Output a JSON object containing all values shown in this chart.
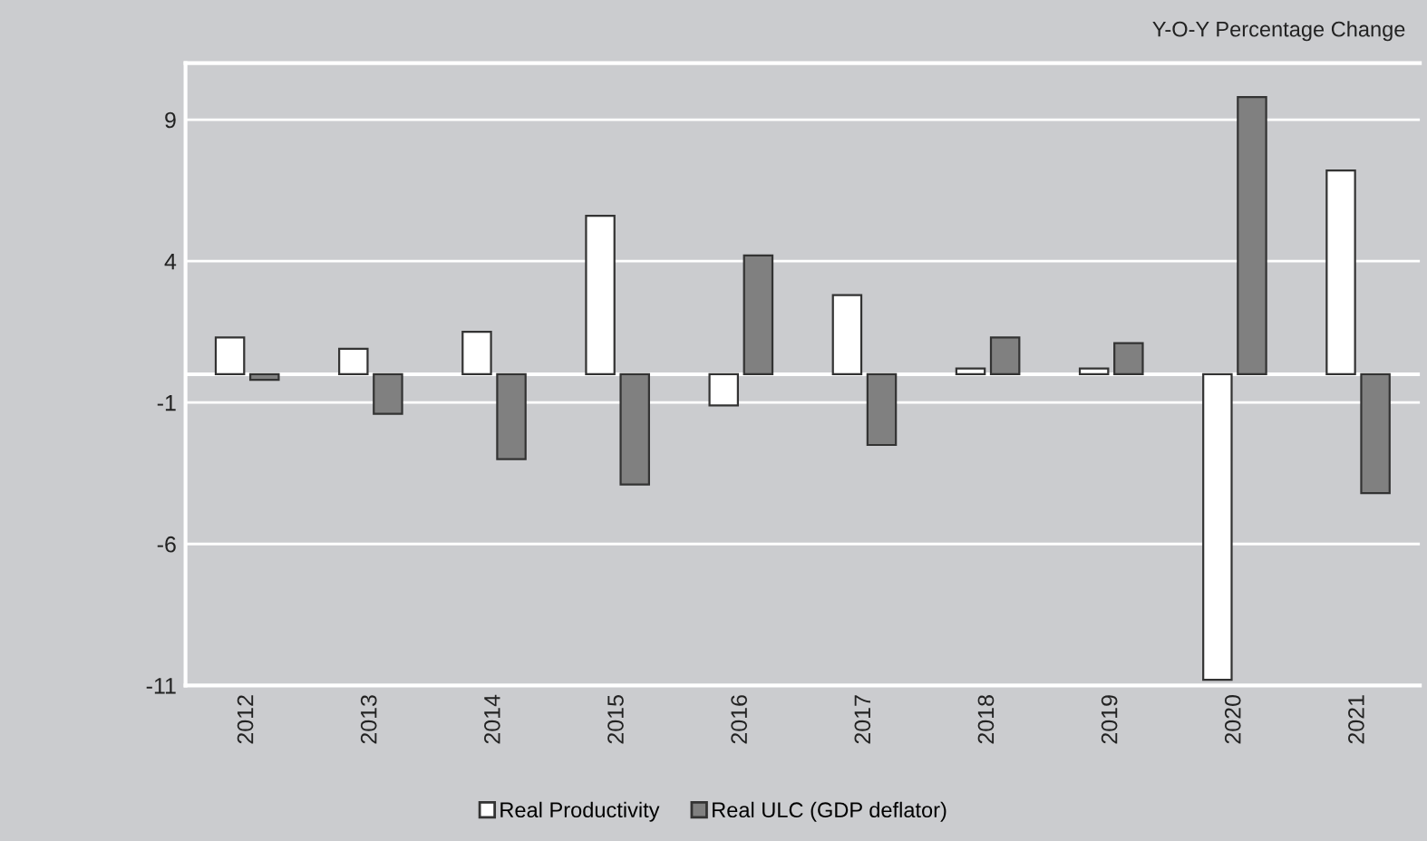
{
  "chart_data": {
    "type": "bar",
    "categories": [
      "2012",
      "2013",
      "2014",
      "2015",
      "2016",
      "2017",
      "2018",
      "2019",
      "2020",
      "2021"
    ],
    "series": [
      {
        "name": "Real Productivity",
        "color": "#ffffff",
        "values": [
          1.3,
          0.9,
          1.5,
          5.6,
          -1.1,
          2.8,
          0.2,
          0.2,
          -10.8,
          7.2
        ]
      },
      {
        "name": "Real ULC (GDP deflator)",
        "color": "#808080",
        "values": [
          -0.2,
          -1.4,
          -3.0,
          -3.9,
          4.2,
          -2.5,
          1.3,
          1.1,
          9.8,
          -4.2
        ]
      }
    ],
    "annotations": [
      "Y-O-Y Percentage Change"
    ],
    "ylim": [
      -11,
      11
    ],
    "yticks": [
      9,
      4,
      -1,
      -6,
      -11
    ],
    "grid": "y",
    "legend": "bottom"
  }
}
